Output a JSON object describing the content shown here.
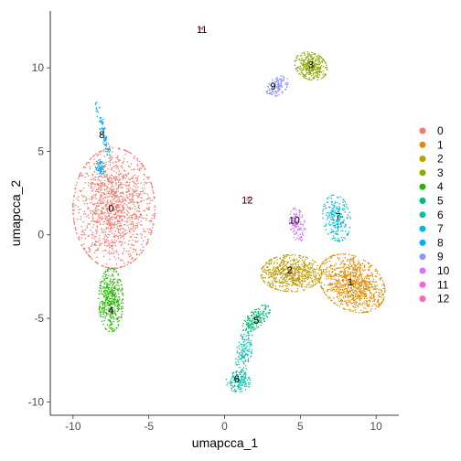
{
  "chart_data": {
    "type": "scatter",
    "xlabel": "umapcca_1",
    "ylabel": "umapcca_2",
    "xlim": [
      -11.5,
      11.5
    ],
    "ylim": [
      -10.8,
      13.4
    ],
    "x_ticks": [
      -10,
      -5,
      0,
      5,
      10
    ],
    "y_ticks": [
      -10,
      -5,
      0,
      5,
      10
    ],
    "grid": false,
    "legend_position": "right",
    "clusters": [
      {
        "name": "0",
        "color": "#F8766D",
        "label_pos": [
          -7.5,
          1.6
        ],
        "blobs": [
          {
            "cx": -7.3,
            "cy": 1.6,
            "rx": 2.7,
            "ry": 3.6,
            "rot": 0,
            "n": 1400
          }
        ]
      },
      {
        "name": "1",
        "color": "#E18A00",
        "label_pos": [
          8.3,
          -2.8
        ],
        "blobs": [
          {
            "cx": 8.4,
            "cy": -2.9,
            "rx": 2.3,
            "ry": 1.6,
            "rot": -25,
            "n": 900
          }
        ]
      },
      {
        "name": "2",
        "color": "#BE9C00",
        "label_pos": [
          4.3,
          -2.1
        ],
        "blobs": [
          {
            "cx": 4.4,
            "cy": -2.3,
            "rx": 2.0,
            "ry": 1.1,
            "rot": 0,
            "n": 650
          }
        ]
      },
      {
        "name": "3",
        "color": "#8CAB00",
        "label_pos": [
          5.7,
          10.2
        ],
        "blobs": [
          {
            "cx": 5.7,
            "cy": 10.1,
            "rx": 1.1,
            "ry": 0.8,
            "rot": -20,
            "n": 330
          }
        ]
      },
      {
        "name": "4",
        "color": "#24B700",
        "label_pos": [
          -7.5,
          -4.5
        ],
        "blobs": [
          {
            "cx": -7.5,
            "cy": -3.9,
            "rx": 0.8,
            "ry": 1.9,
            "rot": 0,
            "n": 420
          }
        ]
      },
      {
        "name": "5",
        "color": "#00BE70",
        "label_pos": [
          2.1,
          -5.1
        ],
        "blobs": [
          {
            "cx": 2.1,
            "cy": -5.0,
            "rx": 1.1,
            "ry": 0.5,
            "rot": 40,
            "n": 170
          }
        ]
      },
      {
        "name": "6",
        "color": "#00C1AB",
        "label_pos": [
          0.8,
          -8.6
        ],
        "blobs": [
          {
            "cx": 1.3,
            "cy": -7.0,
            "rx": 0.5,
            "ry": 1.5,
            "rot": -10,
            "n": 140
          },
          {
            "cx": 0.9,
            "cy": -8.8,
            "rx": 0.8,
            "ry": 0.6,
            "rot": 0,
            "n": 150
          }
        ]
      },
      {
        "name": "7",
        "color": "#00BBDA",
        "label_pos": [
          7.5,
          1.1
        ],
        "blobs": [
          {
            "cx": 7.4,
            "cy": 1.0,
            "rx": 0.9,
            "ry": 1.4,
            "rot": 10,
            "n": 230
          }
        ]
      },
      {
        "name": "8",
        "color": "#00ACFC",
        "label_pos": [
          -8.1,
          6.0
        ],
        "blobs": [
          {
            "cx": -8.0,
            "cy": 6.2,
            "rx": 0.2,
            "ry": 1.8,
            "rot": 15,
            "n": 90
          },
          {
            "cx": -8.2,
            "cy": 4.0,
            "rx": 0.3,
            "ry": 0.5,
            "rot": 0,
            "n": 60
          }
        ]
      },
      {
        "name": "9",
        "color": "#8B93FF",
        "label_pos": [
          3.2,
          8.9
        ],
        "blobs": [
          {
            "cx": 3.5,
            "cy": 8.9,
            "rx": 0.8,
            "ry": 0.5,
            "rot": 35,
            "n": 130
          }
        ]
      },
      {
        "name": "10",
        "color": "#D575FE",
        "label_pos": [
          4.6,
          0.9
        ],
        "blobs": [
          {
            "cx": 4.8,
            "cy": 0.6,
            "rx": 0.5,
            "ry": 1.0,
            "rot": 10,
            "n": 130
          }
        ]
      },
      {
        "name": "11",
        "color": "#F962DD",
        "label_pos": [
          -1.5,
          12.3
        ],
        "blobs": [
          {
            "cx": -1.5,
            "cy": 12.3,
            "rx": 0.2,
            "ry": 0.1,
            "rot": 0,
            "n": 10
          }
        ]
      },
      {
        "name": "12",
        "color": "#FF65AC",
        "label_pos": [
          1.5,
          2.1
        ],
        "blobs": [
          {
            "cx": 1.6,
            "cy": 2.1,
            "rx": 0.15,
            "ry": 0.15,
            "rot": 0,
            "n": 10
          }
        ]
      }
    ]
  }
}
